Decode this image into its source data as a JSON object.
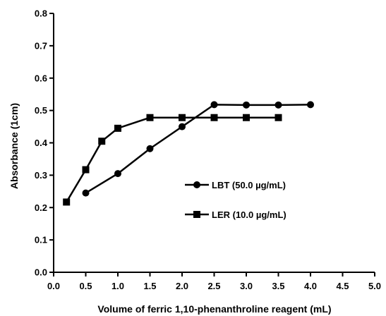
{
  "chart_data": {
    "type": "line",
    "title": "",
    "xlabel": "Volume of ferric 1,10-phenanthroline reagent (mL)",
    "ylabel": "Absorbance (1cm)",
    "xlim": [
      0.0,
      5.0
    ],
    "ylim": [
      0.0,
      0.8
    ],
    "x_ticks": [
      "0.0",
      "0.5",
      "1.0",
      "1.5",
      "2.0",
      "2.5",
      "3.0",
      "3.5",
      "4.0",
      "4.5",
      "5.0"
    ],
    "y_ticks": [
      "0.0",
      "0.1",
      "0.2",
      "0.3",
      "0.4",
      "0.5",
      "0.6",
      "0.7",
      "0.8"
    ],
    "grid": false,
    "legend_position": "center-right",
    "series": [
      {
        "name": "LBT (50.0 µg/mL)",
        "marker": "circle",
        "color": "#000000",
        "x": [
          0.5,
          1.0,
          1.5,
          2.0,
          2.5,
          3.0,
          3.5,
          4.0
        ],
        "y": [
          0.245,
          0.305,
          0.382,
          0.45,
          0.518,
          0.517,
          0.517,
          0.518
        ]
      },
      {
        "name": "LER (10.0 µg/mL)",
        "marker": "square",
        "color": "#000000",
        "x": [
          0.2,
          0.5,
          0.75,
          1.0,
          1.5,
          2.0,
          2.5,
          3.0,
          3.5
        ],
        "y": [
          0.217,
          0.317,
          0.405,
          0.445,
          0.478,
          0.478,
          0.478,
          0.478,
          0.478
        ]
      }
    ]
  }
}
